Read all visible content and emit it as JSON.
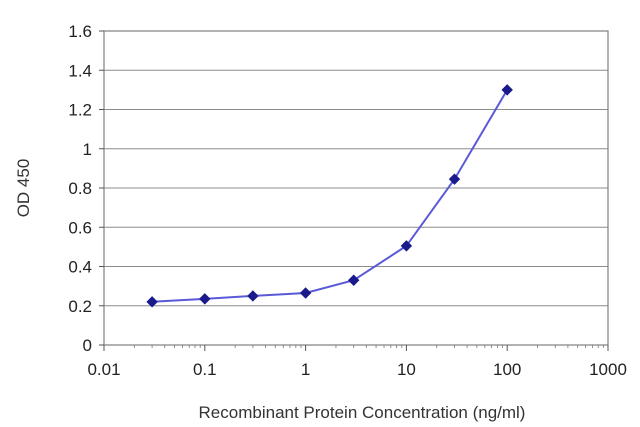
{
  "chart_data": {
    "type": "line",
    "title": "",
    "xlabel": "Recombinant Protein Concentration (ng/ml)",
    "ylabel": "OD 450",
    "x_scale": "log",
    "xlim": [
      0.01,
      1000
    ],
    "ylim": [
      0,
      1.6
    ],
    "x_ticks": [
      0.01,
      0.1,
      1,
      10,
      100,
      1000
    ],
    "x_tick_labels": [
      "0.01",
      "0.1",
      "1",
      "10",
      "100",
      "1000"
    ],
    "y_ticks": [
      0,
      0.2,
      0.4,
      0.6,
      0.8,
      1,
      1.2,
      1.4,
      1.6
    ],
    "y_tick_labels": [
      "0",
      "0.2",
      "0.4",
      "0.6",
      "0.8",
      "1",
      "1.2",
      "1.4",
      "1.6"
    ],
    "grid": "horizontal",
    "legend": "none",
    "series": [
      {
        "x": [
          0.03,
          0.1,
          0.3,
          1,
          3,
          10,
          30,
          100
        ],
        "y": [
          0.22,
          0.235,
          0.25,
          0.265,
          0.33,
          0.505,
          0.845,
          1.3
        ],
        "color": "#1a1a8c",
        "marker": "diamond"
      }
    ]
  }
}
